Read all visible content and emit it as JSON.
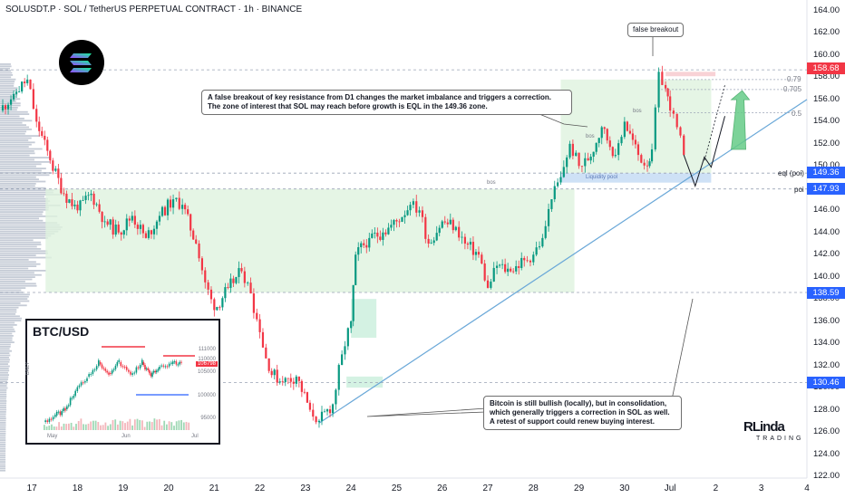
{
  "header": {
    "title": "SOLUSDT.P · SOL / TetherUS PERPETUAL CONTRACT · 1h · BINANCE"
  },
  "annotations": {
    "false_breakout": "false breakout",
    "main_note_1": "A false breakout of key resistance from D1 changes the market imbalance and triggers a correction.",
    "main_note_2": "The zone of interest that SOL may reach before growth is EQL in the 149.36 zone.",
    "btc_note_1": "Bitcoin is still bullish (locally), but in consolidation,",
    "btc_note_2": "which generally triggers a correction in SOL as well.",
    "btc_note_3": "A retest of support could renew buying interest.",
    "bos_1": "bos",
    "bos_2": "bos",
    "bos_3": "bos",
    "liquidity_pool": "Liquidity pool",
    "eql_poi": "eql (poi)",
    "poi": "poi",
    "fib_079": "0.79",
    "fib_0705": "0.705",
    "fib_05": "0.5"
  },
  "price_tags": [
    {
      "label": "158.68",
      "color": "#f23645"
    },
    {
      "label": "149.36",
      "color": "#2962ff"
    },
    {
      "label": "147.93",
      "color": "#2962ff"
    },
    {
      "label": "138.59",
      "color": "#2962ff"
    },
    {
      "label": "130.46",
      "color": "#2962ff"
    }
  ],
  "inset": {
    "title": "BTC/USD",
    "side_label": "DAILY",
    "yticks": [
      "111000",
      "110000",
      "105000",
      "100000",
      "95000"
    ],
    "price_tag": "106798",
    "xticks": [
      "May",
      "Jun",
      "Jul"
    ]
  },
  "brand": {
    "name": "RLinda",
    "sub": "TRADING"
  },
  "logo_icon": "solana-logo-icon",
  "colors": {
    "up": "#089981",
    "down": "#f23645",
    "zone": "#d9f2d9",
    "trend": "#6aa8d8",
    "tag_red": "#f23645",
    "tag_blue": "#2962ff"
  },
  "chart_data": {
    "type": "candlestick",
    "title": "SOLUSDT.P · SOL / TetherUS PERPETUAL CONTRACT · 1h · BINANCE",
    "ylim": [
      122,
      164
    ],
    "y_ticks": [
      122,
      124,
      126,
      128,
      130,
      132,
      134,
      136,
      138,
      140,
      142,
      144,
      146,
      148,
      150,
      152,
      154,
      156,
      158,
      160,
      162,
      164
    ],
    "x_ticks": [
      "17",
      "18",
      "19",
      "20",
      "21",
      "22",
      "23",
      "24",
      "25",
      "26",
      "27",
      "28",
      "29",
      "30",
      "Jul",
      "2",
      "3",
      "4"
    ],
    "x_range_days": [
      16.3,
      34.0
    ],
    "levels": [
      158.68,
      149.36,
      147.93,
      138.59,
      130.46
    ],
    "path": [
      [
        16.3,
        155.0
      ],
      [
        16.6,
        156.5
      ],
      [
        16.9,
        157.8
      ],
      [
        17.1,
        154.0
      ],
      [
        17.4,
        150.5
      ],
      [
        17.7,
        147.5
      ],
      [
        18.0,
        146.0
      ],
      [
        18.3,
        147.5
      ],
      [
        18.6,
        145.0
      ],
      [
        18.9,
        144.0
      ],
      [
        19.2,
        145.5
      ],
      [
        19.5,
        143.5
      ],
      [
        19.8,
        145.5
      ],
      [
        20.1,
        147.0
      ],
      [
        20.3,
        146.5
      ],
      [
        20.6,
        143.0
      ],
      [
        20.8,
        139.5
      ],
      [
        21.0,
        137.0
      ],
      [
        21.3,
        139.0
      ],
      [
        21.6,
        140.5
      ],
      [
        21.8,
        138.5
      ],
      [
        22.0,
        135.0
      ],
      [
        22.2,
        131.5
      ],
      [
        22.5,
        130.5
      ],
      [
        22.8,
        131.0
      ],
      [
        23.1,
        128.0
      ],
      [
        23.3,
        127.0
      ],
      [
        23.6,
        128.5
      ],
      [
        23.8,
        133.0
      ],
      [
        24.0,
        136.0
      ],
      [
        24.1,
        142.0
      ],
      [
        24.4,
        143.5
      ],
      [
        24.7,
        144.0
      ],
      [
        25.0,
        145.0
      ],
      [
        25.3,
        146.5
      ],
      [
        25.5,
        146.0
      ],
      [
        25.7,
        143.0
      ],
      [
        26.0,
        145.0
      ],
      [
        26.3,
        144.5
      ],
      [
        26.5,
        143.0
      ],
      [
        26.8,
        142.0
      ],
      [
        27.0,
        139.0
      ],
      [
        27.2,
        141.0
      ],
      [
        27.5,
        140.5
      ],
      [
        27.8,
        141.5
      ],
      [
        28.0,
        142.0
      ],
      [
        28.2,
        143.5
      ],
      [
        28.4,
        147.0
      ],
      [
        28.6,
        149.0
      ],
      [
        28.8,
        152.0
      ],
      [
        29.0,
        150.0
      ],
      [
        29.2,
        150.5
      ],
      [
        29.5,
        153.5
      ],
      [
        29.8,
        151.0
      ],
      [
        30.0,
        154.0
      ],
      [
        30.3,
        151.0
      ],
      [
        30.5,
        150.0
      ],
      [
        30.6,
        151.5
      ],
      [
        30.75,
        158.5
      ],
      [
        30.9,
        157.0
      ],
      [
        31.0,
        155.0
      ],
      [
        31.15,
        153.5
      ],
      [
        31.3,
        151.0
      ]
    ],
    "projection": [
      [
        31.3,
        151.0
      ],
      [
        31.55,
        148.2
      ],
      [
        31.75,
        150.8
      ],
      [
        31.9,
        149.9
      ],
      [
        32.2,
        154.5
      ]
    ],
    "trendline": [
      [
        23.3,
        126.8
      ],
      [
        34.0,
        156.0
      ]
    ],
    "volume_profile": "left side horizontal histogram",
    "grid": false
  }
}
